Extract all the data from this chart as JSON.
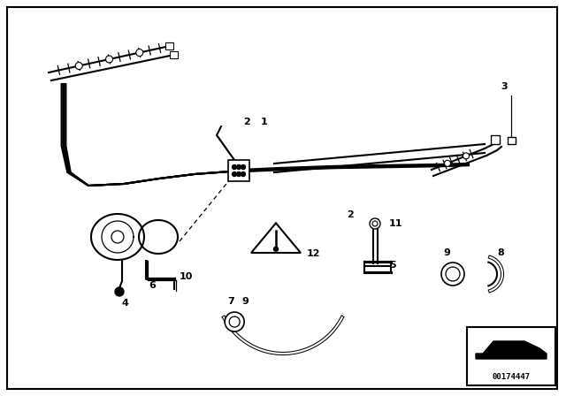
{
  "bg_color": "#ffffff",
  "border_color": "#000000",
  "part_number": "00174447",
  "figsize": [
    6.4,
    4.48
  ],
  "dpi": 100
}
